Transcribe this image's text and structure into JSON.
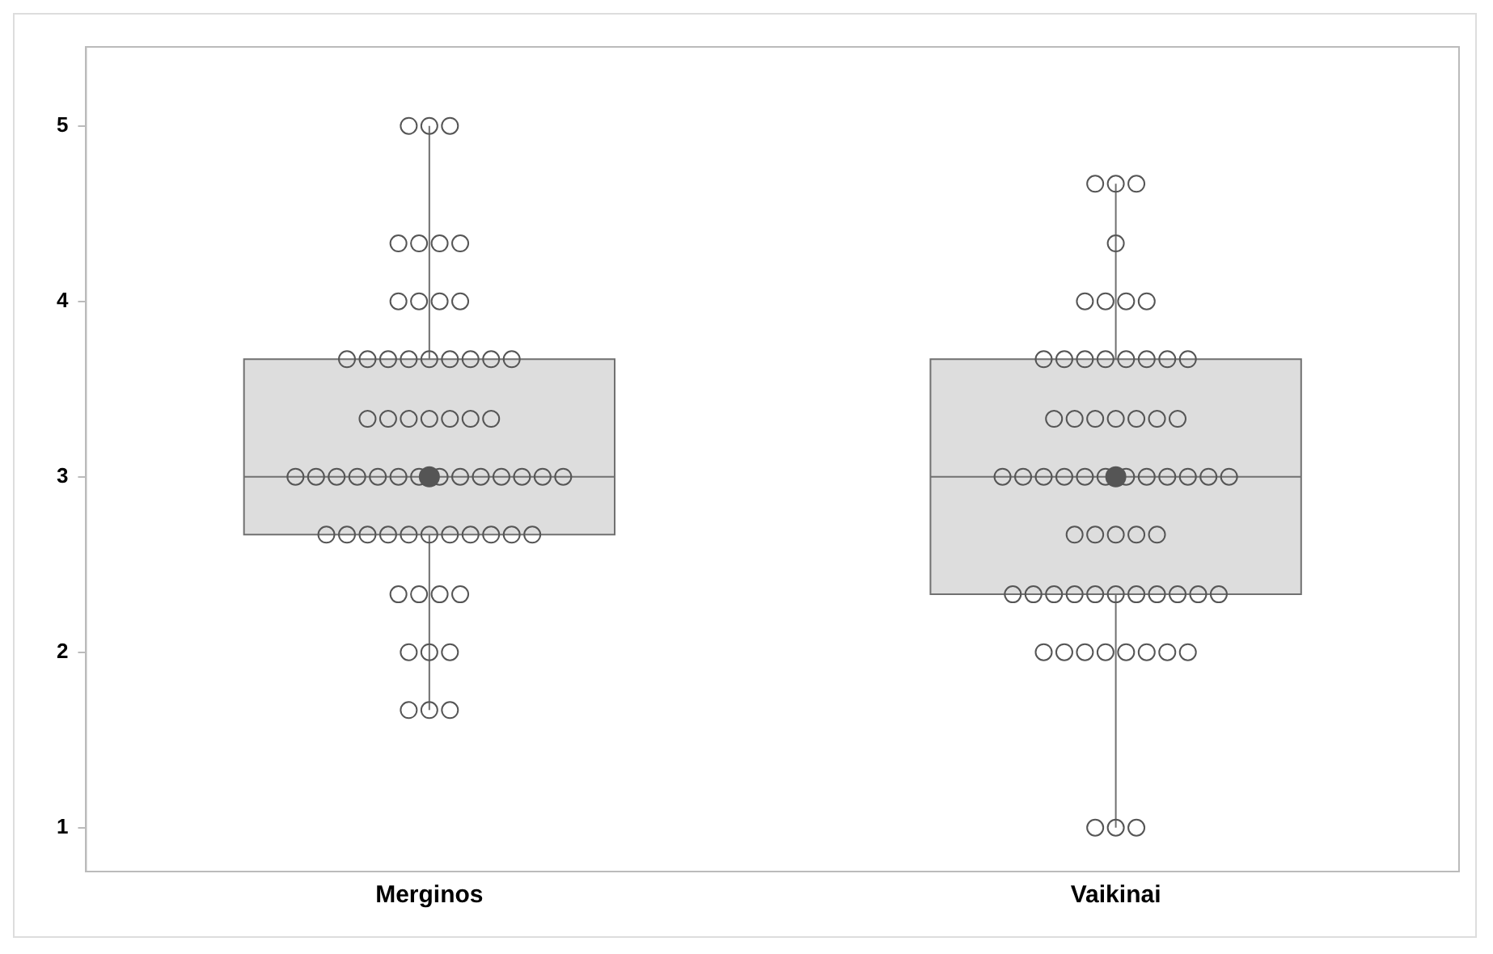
{
  "chart_data": {
    "type": "box",
    "categories": [
      "Merginos",
      "Vaikinai"
    ],
    "color": "#dddddd",
    "boxes": [
      {
        "low": 1.67,
        "q1": 2.67,
        "median": 3,
        "q3": 3.67,
        "high": 5,
        "mean": 3
      },
      {
        "low": 1,
        "q1": 2.33,
        "median": 3,
        "q3": 3.67,
        "high": 4.67,
        "mean": 3
      }
    ],
    "series": [
      {
        "type": "scatter",
        "color": "#555555",
        "x": [
          "Merginos",
          "Merginos",
          "Merginos",
          "Merginos",
          "Merginos",
          "Merginos",
          "Merginos",
          "Merginos",
          "Merginos",
          "Merginos",
          "Merginos",
          "Merginos",
          "Merginos",
          "Merginos",
          "Merginos",
          "Merginos",
          "Merginos",
          "Merginos",
          "Merginos",
          "Merginos",
          "Merginos",
          "Merginos",
          "Merginos",
          "Merginos",
          "Merginos",
          "Merginos",
          "Merginos",
          "Merginos",
          "Merginos",
          "Merginos",
          "Merginos",
          "Merginos",
          "Merginos",
          "Merginos",
          "Merginos",
          "Merginos",
          "Merginos",
          "Merginos",
          "Merginos",
          "Merginos",
          "Merginos",
          "Merginos",
          "Merginos",
          "Merginos",
          "Merginos",
          "Merginos",
          "Merginos",
          "Merginos",
          "Merginos",
          "Merginos",
          "Merginos",
          "Merginos",
          "Merginos",
          "Merginos",
          "Merginos",
          "Merginos",
          "Merginos",
          "Merginos",
          "Merginos",
          "Merginos",
          "Merginos",
          "Merginos"
        ],
        "values": [
          5,
          5,
          5,
          4.33,
          4.33,
          4.33,
          4.33,
          4,
          4,
          4,
          4,
          3.67,
          3.67,
          3.67,
          3.67,
          3.67,
          3.67,
          3.67,
          3.67,
          3.67,
          3.33,
          3.33,
          3.33,
          3.33,
          3.33,
          3.33,
          3.33,
          3,
          3,
          3,
          3,
          3,
          3,
          3,
          3,
          3,
          3,
          3,
          3,
          3,
          3,
          2.67,
          2.67,
          2.67,
          2.67,
          2.67,
          2.67,
          2.67,
          2.67,
          2.67,
          2.67,
          2.67,
          2.33,
          2.33,
          2.33,
          2.33,
          2,
          2,
          2,
          1.67,
          1.67,
          1.67
        ]
      },
      {
        "type": "scatter",
        "color": "#555555",
        "x": [
          "Vaikinai",
          "Vaikinai",
          "Vaikinai",
          "Vaikinai",
          "Vaikinai",
          "Vaikinai",
          "Vaikinai",
          "Vaikinai",
          "Vaikinai",
          "Vaikinai",
          "Vaikinai",
          "Vaikinai",
          "Vaikinai",
          "Vaikinai",
          "Vaikinai",
          "Vaikinai",
          "Vaikinai",
          "Vaikinai",
          "Vaikinai",
          "Vaikinai",
          "Vaikinai",
          "Vaikinai",
          "Vaikinai",
          "Vaikinai",
          "Vaikinai",
          "Vaikinai",
          "Vaikinai",
          "Vaikinai",
          "Vaikinai",
          "Vaikinai",
          "Vaikinai",
          "Vaikinai",
          "Vaikinai",
          "Vaikinai",
          "Vaikinai",
          "Vaikinai",
          "Vaikinai",
          "Vaikinai",
          "Vaikinai",
          "Vaikinai",
          "Vaikinai",
          "Vaikinai",
          "Vaikinai",
          "Vaikinai",
          "Vaikinai",
          "Vaikinai",
          "Vaikinai",
          "Vaikinai",
          "Vaikinai",
          "Vaikinai",
          "Vaikinai",
          "Vaikinai",
          "Vaikinai",
          "Vaikinai",
          "Vaikinai",
          "Vaikinai",
          "Vaikinai",
          "Vaikinai",
          "Vaikinai",
          "Vaikinai",
          "Vaikinai",
          "Vaikinai"
        ],
        "values": [
          4.67,
          4.67,
          4.67,
          4.33,
          4,
          4,
          4,
          4,
          3.67,
          3.67,
          3.67,
          3.67,
          3.67,
          3.67,
          3.67,
          3.67,
          3.33,
          3.33,
          3.33,
          3.33,
          3.33,
          3.33,
          3.33,
          3,
          3,
          3,
          3,
          3,
          3,
          3,
          3,
          3,
          3,
          3,
          3,
          2.67,
          2.67,
          2.67,
          2.67,
          2.67,
          2.33,
          2.33,
          2.33,
          2.33,
          2.33,
          2.33,
          2.33,
          2.33,
          2.33,
          2.33,
          2.33,
          2,
          2,
          2,
          2,
          2,
          2,
          2,
          2,
          1,
          1,
          1
        ]
      }
    ],
    "marker": "circle",
    "ylim": [
      0.75,
      5.45
    ],
    "yticks": [
      1,
      2,
      3,
      4,
      5
    ],
    "grid": false,
    "legend": false
  }
}
